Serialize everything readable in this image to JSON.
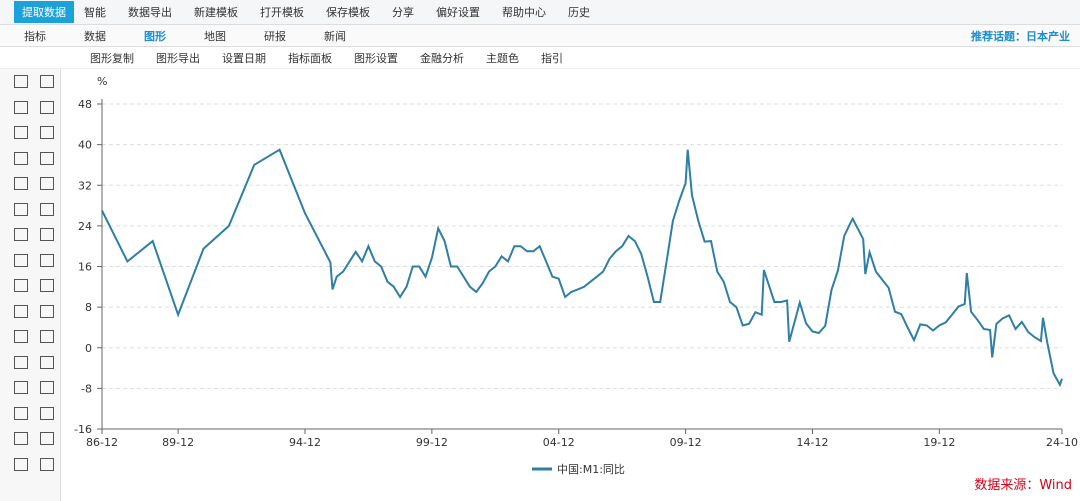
{
  "toolbar": {
    "primary": "提取数据",
    "items": [
      "智能",
      "数据导出",
      "新建模板",
      "打开模板",
      "保存模板",
      "分享",
      "偏好设置",
      "帮助中心",
      "历史"
    ]
  },
  "tabs": {
    "items": [
      "指标",
      "数据",
      "图形",
      "地图",
      "研报",
      "新闻"
    ],
    "active": 2,
    "topic": "推荐话题：日本产业"
  },
  "tools": [
    "图形复制",
    "图形导出",
    "设置日期",
    "指标面板",
    "图形设置",
    "金融分析",
    "主题色",
    "指引"
  ],
  "source": "数据来源：Wind",
  "chart_data": {
    "type": "line",
    "ylabel": "%",
    "grid": true,
    "x": [
      "86-12",
      "87-12",
      "88-12",
      "89-12",
      "90-12",
      "91-12",
      "92-12",
      "93-12",
      "94-12",
      "95-12",
      "96-01",
      "96-03",
      "96-06",
      "96-12",
      "97-03",
      "97-06",
      "97-09",
      "97-12",
      "98-03",
      "98-06",
      "98-09",
      "98-12",
      "99-03",
      "99-06",
      "99-09",
      "99-12",
      "00-03",
      "00-06",
      "00-09",
      "00-12",
      "01-03",
      "01-06",
      "01-09",
      "01-12",
      "02-03",
      "02-06",
      "02-09",
      "02-12",
      "03-03",
      "03-06",
      "03-09",
      "03-12",
      "04-03",
      "04-06",
      "04-09",
      "04-12",
      "05-03",
      "05-06",
      "05-09",
      "05-12",
      "06-03",
      "06-06",
      "06-09",
      "06-12",
      "07-03",
      "07-06",
      "07-09",
      "07-12",
      "08-03",
      "08-06",
      "08-09",
      "08-12",
      "09-03",
      "09-06",
      "09-09",
      "09-12",
      "10-01",
      "10-03",
      "10-06",
      "10-09",
      "10-12",
      "11-03",
      "11-06",
      "11-09",
      "11-12",
      "12-03",
      "12-06",
      "12-09",
      "12-12",
      "13-01",
      "13-06",
      "13-09",
      "13-12",
      "14-01",
      "14-06",
      "14-09",
      "14-12",
      "15-03",
      "15-06",
      "15-09",
      "15-12",
      "16-03",
      "16-06",
      "16-07",
      "16-12",
      "17-01",
      "17-03",
      "17-06",
      "17-12",
      "18-03",
      "18-06",
      "18-09",
      "18-12",
      "19-03",
      "19-06",
      "19-09",
      "19-12",
      "20-03",
      "20-06",
      "20-09",
      "20-12",
      "21-01",
      "21-03",
      "21-06",
      "21-09",
      "21-12",
      "22-01",
      "22-03",
      "22-06",
      "22-09",
      "22-12",
      "23-03",
      "23-06",
      "23-09",
      "23-12",
      "24-01",
      "24-03",
      "24-06",
      "24-09",
      "24-10"
    ],
    "series": [
      {
        "name": "中国:M1:同比",
        "color": "#2e7ea6",
        "values": [
          27,
          17,
          21,
          6.5,
          19.5,
          24,
          36,
          39,
          26.5,
          16.8,
          11.5,
          14,
          15,
          18.9,
          17,
          20,
          17,
          16,
          13,
          12,
          10,
          12,
          16,
          16,
          14,
          17.7,
          23.5,
          21,
          16,
          16,
          14,
          12,
          11,
          12.7,
          15,
          16,
          18,
          17,
          20,
          20,
          19,
          19,
          20,
          17,
          14,
          13.6,
          10,
          11,
          11.5,
          12,
          13,
          14,
          15,
          17.5,
          19,
          20,
          22,
          21,
          18.5,
          14,
          9,
          9,
          17,
          25,
          29,
          32.4,
          39,
          30,
          25,
          20.9,
          21,
          15,
          13,
          9,
          8,
          4.4,
          4.7,
          7,
          6.5,
          15.3,
          9,
          9,
          9.3,
          1.2,
          8.9,
          4.8,
          3.2,
          2.9,
          4.3,
          11.4,
          15.2,
          22,
          24.6,
          25.4,
          21.4,
          14.5,
          18.8,
          15,
          11.8,
          7.1,
          6.6,
          4,
          1.5,
          4.6,
          4.4,
          3.4,
          4.4,
          5,
          6.5,
          8.1,
          8.6,
          14.7,
          7.1,
          5.5,
          3.7,
          3.5,
          -1.9,
          4.7,
          5.8,
          6.4,
          3.7,
          5.1,
          3.1,
          2.1,
          1.3,
          5.9,
          1.1,
          -5,
          -7.3,
          -6.1
        ]
      }
    ],
    "xlim": [
      "86-12",
      "24-10"
    ],
    "xticks": [
      "86-12",
      "89-12",
      "94-12",
      "99-12",
      "04-12",
      "09-12",
      "14-12",
      "19-12",
      "24-10"
    ],
    "ylim": [
      -16,
      48
    ],
    "yticks": [
      -16,
      -8,
      0,
      8,
      16,
      24,
      32,
      40,
      48
    ]
  }
}
